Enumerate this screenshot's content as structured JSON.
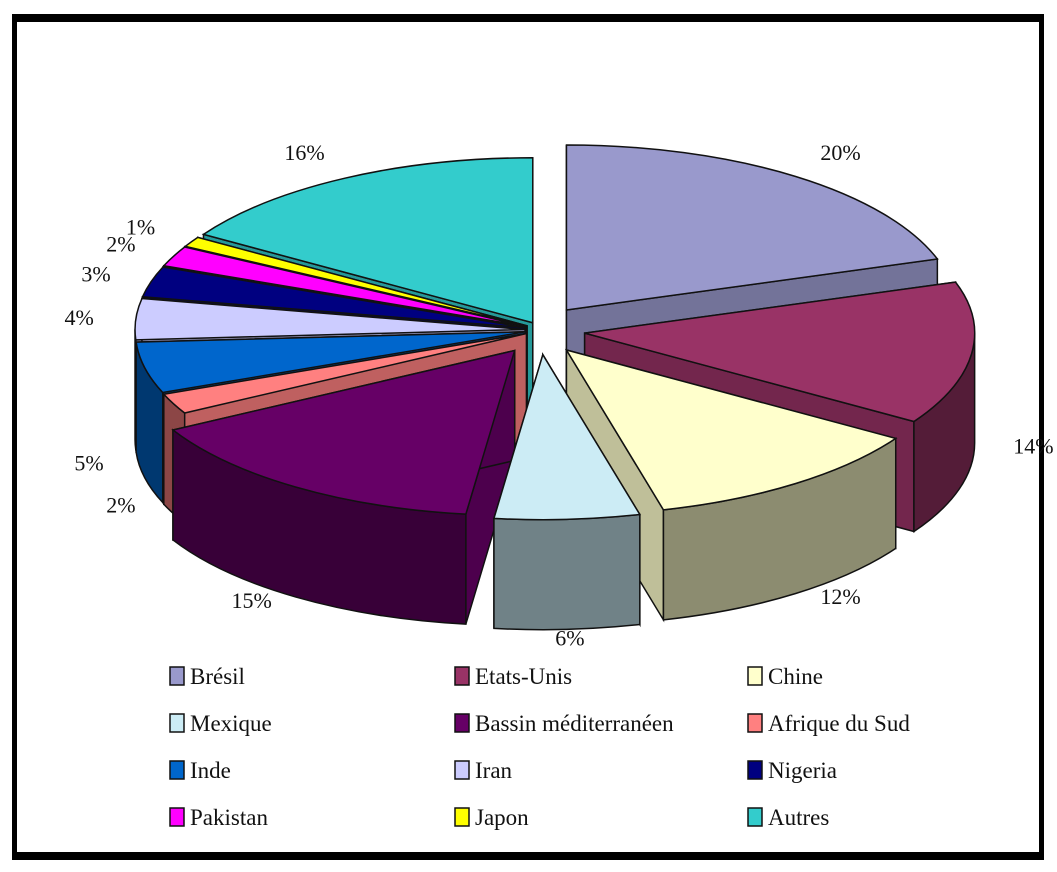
{
  "chart_data": {
    "type": "pie",
    "title": "",
    "legend_placement": "bottom",
    "slices": [
      {
        "name": "Brésil",
        "value": 20,
        "label": "20%",
        "color": "#9999cc"
      },
      {
        "name": "Etats-Unis",
        "value": 14,
        "label": "14%",
        "color": "#993366"
      },
      {
        "name": "Chine",
        "value": 12,
        "label": "12%",
        "color": "#ffffcc"
      },
      {
        "name": "Mexique",
        "value": 6,
        "label": "6%",
        "color": "#ccecf5"
      },
      {
        "name": "Bassin méditerranéen",
        "value": 15,
        "label": "15%",
        "color": "#660066"
      },
      {
        "name": "Afrique du Sud",
        "value": 2,
        "label": "2%",
        "color": "#ff8080"
      },
      {
        "name": "Inde",
        "value": 5,
        "label": "5%",
        "color": "#0066cc"
      },
      {
        "name": "Iran",
        "value": 4,
        "label": "4%",
        "color": "#ccccff"
      },
      {
        "name": "Nigeria",
        "value": 3,
        "label": "3%",
        "color": "#000080"
      },
      {
        "name": "Pakistan",
        "value": 2,
        "label": "2%",
        "color": "#ff00ff"
      },
      {
        "name": "Japon",
        "value": 1,
        "label": "1%",
        "color": "#ffff00"
      },
      {
        "name": "Autres",
        "value": 16,
        "label": "16%",
        "color": "#33cccc"
      }
    ]
  }
}
